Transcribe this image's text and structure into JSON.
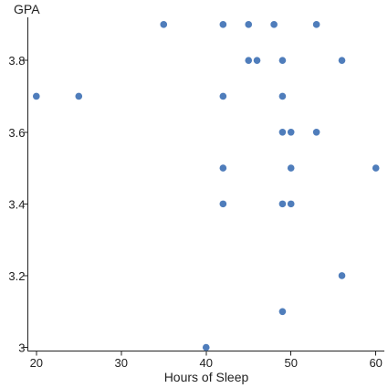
{
  "chart_data": {
    "type": "scatter",
    "title": "",
    "xlabel": "Hours of Sleep",
    "ylabel": "GPA",
    "xlim": [
      19,
      61
    ],
    "ylim": [
      2.99,
      3.92
    ],
    "x_ticks": [
      20,
      30,
      40,
      50,
      60
    ],
    "x_tick_labels": [
      "20",
      "30",
      "40",
      "50",
      "60"
    ],
    "y_ticks": [
      3.0,
      3.2,
      3.4,
      3.6,
      3.8
    ],
    "y_tick_labels": [
      "3",
      "3.2",
      "3.4",
      "3.6",
      "3.8"
    ],
    "grid": false,
    "series": [
      {
        "point_color": "#4f7dbb",
        "points": [
          {
            "x": 35,
            "y": 3.9
          },
          {
            "x": 42,
            "y": 3.9
          },
          {
            "x": 45,
            "y": 3.9
          },
          {
            "x": 48,
            "y": 3.9
          },
          {
            "x": 53,
            "y": 3.9
          },
          {
            "x": 45,
            "y": 3.8
          },
          {
            "x": 46,
            "y": 3.8
          },
          {
            "x": 49,
            "y": 3.8
          },
          {
            "x": 56,
            "y": 3.8
          },
          {
            "x": 20,
            "y": 3.7
          },
          {
            "x": 25,
            "y": 3.7
          },
          {
            "x": 42,
            "y": 3.7
          },
          {
            "x": 49,
            "y": 3.7
          },
          {
            "x": 49,
            "y": 3.6
          },
          {
            "x": 50,
            "y": 3.6
          },
          {
            "x": 53,
            "y": 3.6
          },
          {
            "x": 42,
            "y": 3.5
          },
          {
            "x": 50,
            "y": 3.5
          },
          {
            "x": 60,
            "y": 3.5
          },
          {
            "x": 42,
            "y": 3.4
          },
          {
            "x": 49,
            "y": 3.4
          },
          {
            "x": 50,
            "y": 3.4
          },
          {
            "x": 56,
            "y": 3.2
          },
          {
            "x": 49,
            "y": 3.1
          },
          {
            "x": 40,
            "y": 3.0
          }
        ]
      }
    ]
  }
}
